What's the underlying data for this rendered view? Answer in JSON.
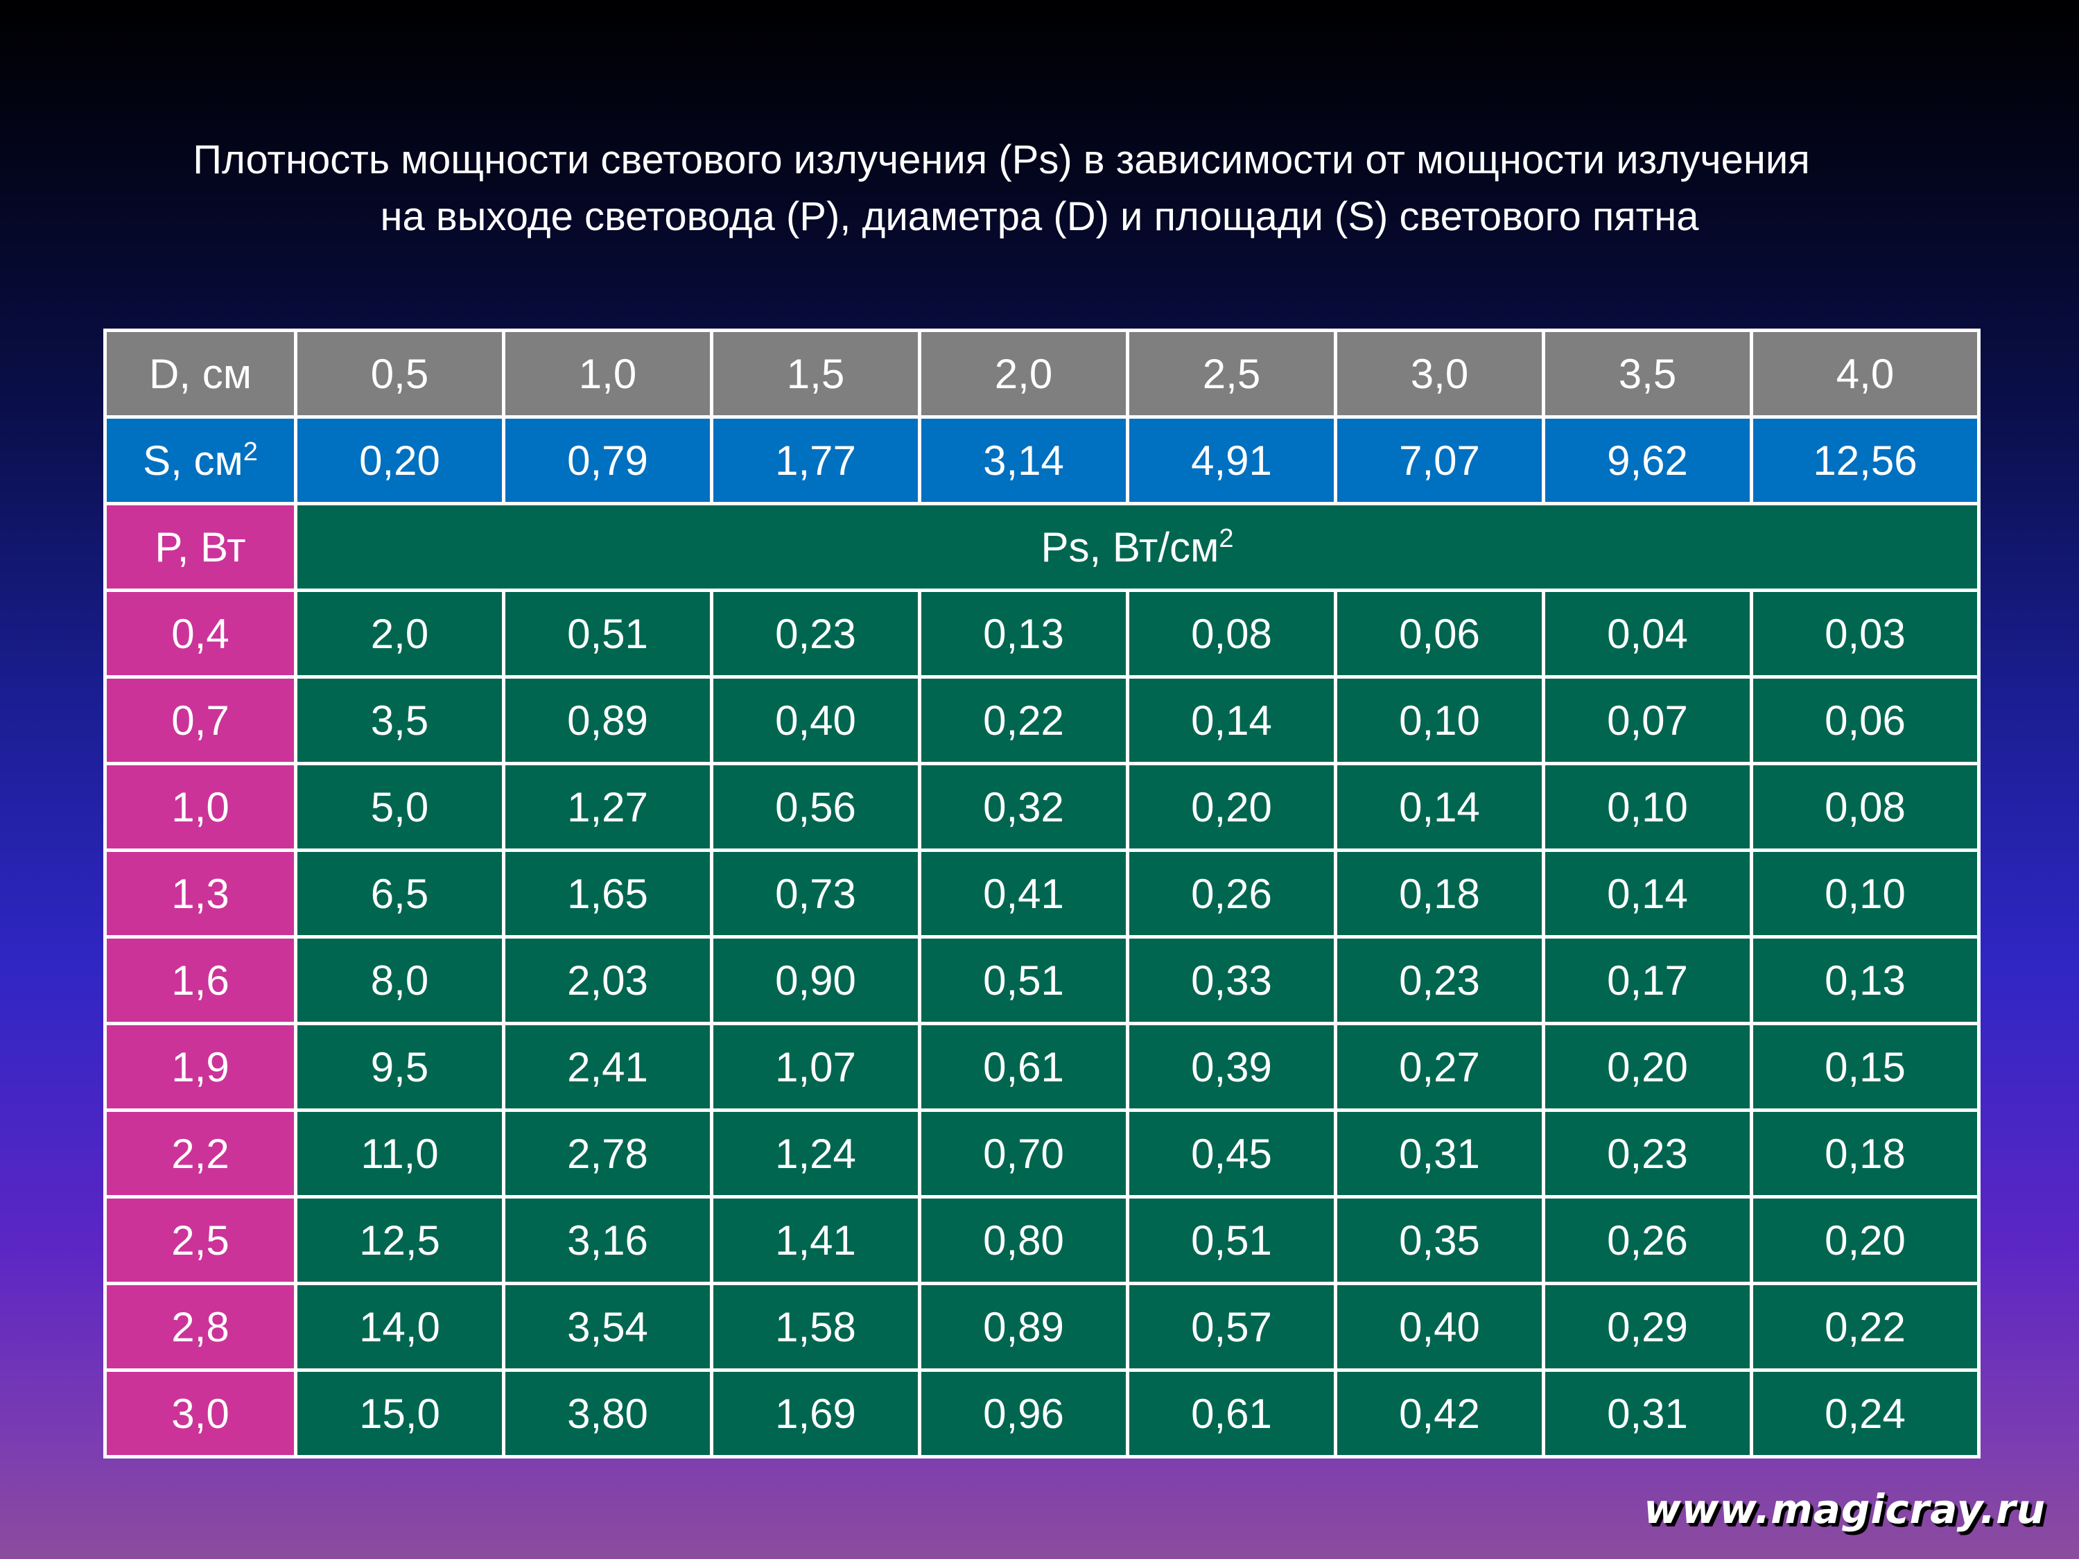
{
  "title": {
    "line1": "Плотность мощности светового излучения (Ps) в зависимости от мощности излучения",
    "line2": "на выходе световода (P), диаметра (D) и площади (S) светового пятна"
  },
  "table": {
    "d_label": "D, см",
    "d_values": [
      "0,5",
      "1,0",
      "1,5",
      "2,0",
      "2,5",
      "3,0",
      "3,5",
      "4,0"
    ],
    "s_label": "S, см",
    "s_label_sup": "2",
    "s_values": [
      "0,20",
      "0,79",
      "1,77",
      "3,14",
      "4,91",
      "7,07",
      "9,62",
      "12,56"
    ],
    "p_label": "P, Вт",
    "ps_label": "Ps, Вт/см",
    "ps_label_sup": "2",
    "rows": [
      {
        "p": "0,4",
        "values": [
          "2,0",
          "0,51",
          "0,23",
          "0,13",
          "0,08",
          "0,06",
          "0,04",
          "0,03"
        ]
      },
      {
        "p": "0,7",
        "values": [
          "3,5",
          "0,89",
          "0,40",
          "0,22",
          "0,14",
          "0,10",
          "0,07",
          "0,06"
        ]
      },
      {
        "p": "1,0",
        "values": [
          "5,0",
          "1,27",
          "0,56",
          "0,32",
          "0,20",
          "0,14",
          "0,10",
          "0,08"
        ]
      },
      {
        "p": "1,3",
        "values": [
          "6,5",
          "1,65",
          "0,73",
          "0,41",
          "0,26",
          "0,18",
          "0,14",
          "0,10"
        ]
      },
      {
        "p": "1,6",
        "values": [
          "8,0",
          "2,03",
          "0,90",
          "0,51",
          "0,33",
          "0,23",
          "0,17",
          "0,13"
        ]
      },
      {
        "p": "1,9",
        "values": [
          "9,5",
          "2,41",
          "1,07",
          "0,61",
          "0,39",
          "0,27",
          "0,20",
          "0,15"
        ]
      },
      {
        "p": "2,2",
        "values": [
          "11,0",
          "2,78",
          "1,24",
          "0,70",
          "0,45",
          "0,31",
          "0,23",
          "0,18"
        ]
      },
      {
        "p": "2,5",
        "values": [
          "12,5",
          "3,16",
          "1,41",
          "0,80",
          "0,51",
          "0,35",
          "0,26",
          "0,20"
        ]
      },
      {
        "p": "2,8",
        "values": [
          "14,0",
          "3,54",
          "1,58",
          "0,89",
          "0,57",
          "0,40",
          "0,29",
          "0,22"
        ]
      },
      {
        "p": "3,0",
        "values": [
          "15,0",
          "3,80",
          "1,69",
          "0,96",
          "0,61",
          "0,42",
          "0,31",
          "0,24"
        ]
      }
    ]
  },
  "watermark": "www.magicray.ru",
  "colors": {
    "d_row": "#7f7f7f",
    "s_row": "#0070c0",
    "p_column": "#cc3399",
    "values": "#006650",
    "grid_lines": "#ffffff",
    "text": "#ffffff"
  }
}
